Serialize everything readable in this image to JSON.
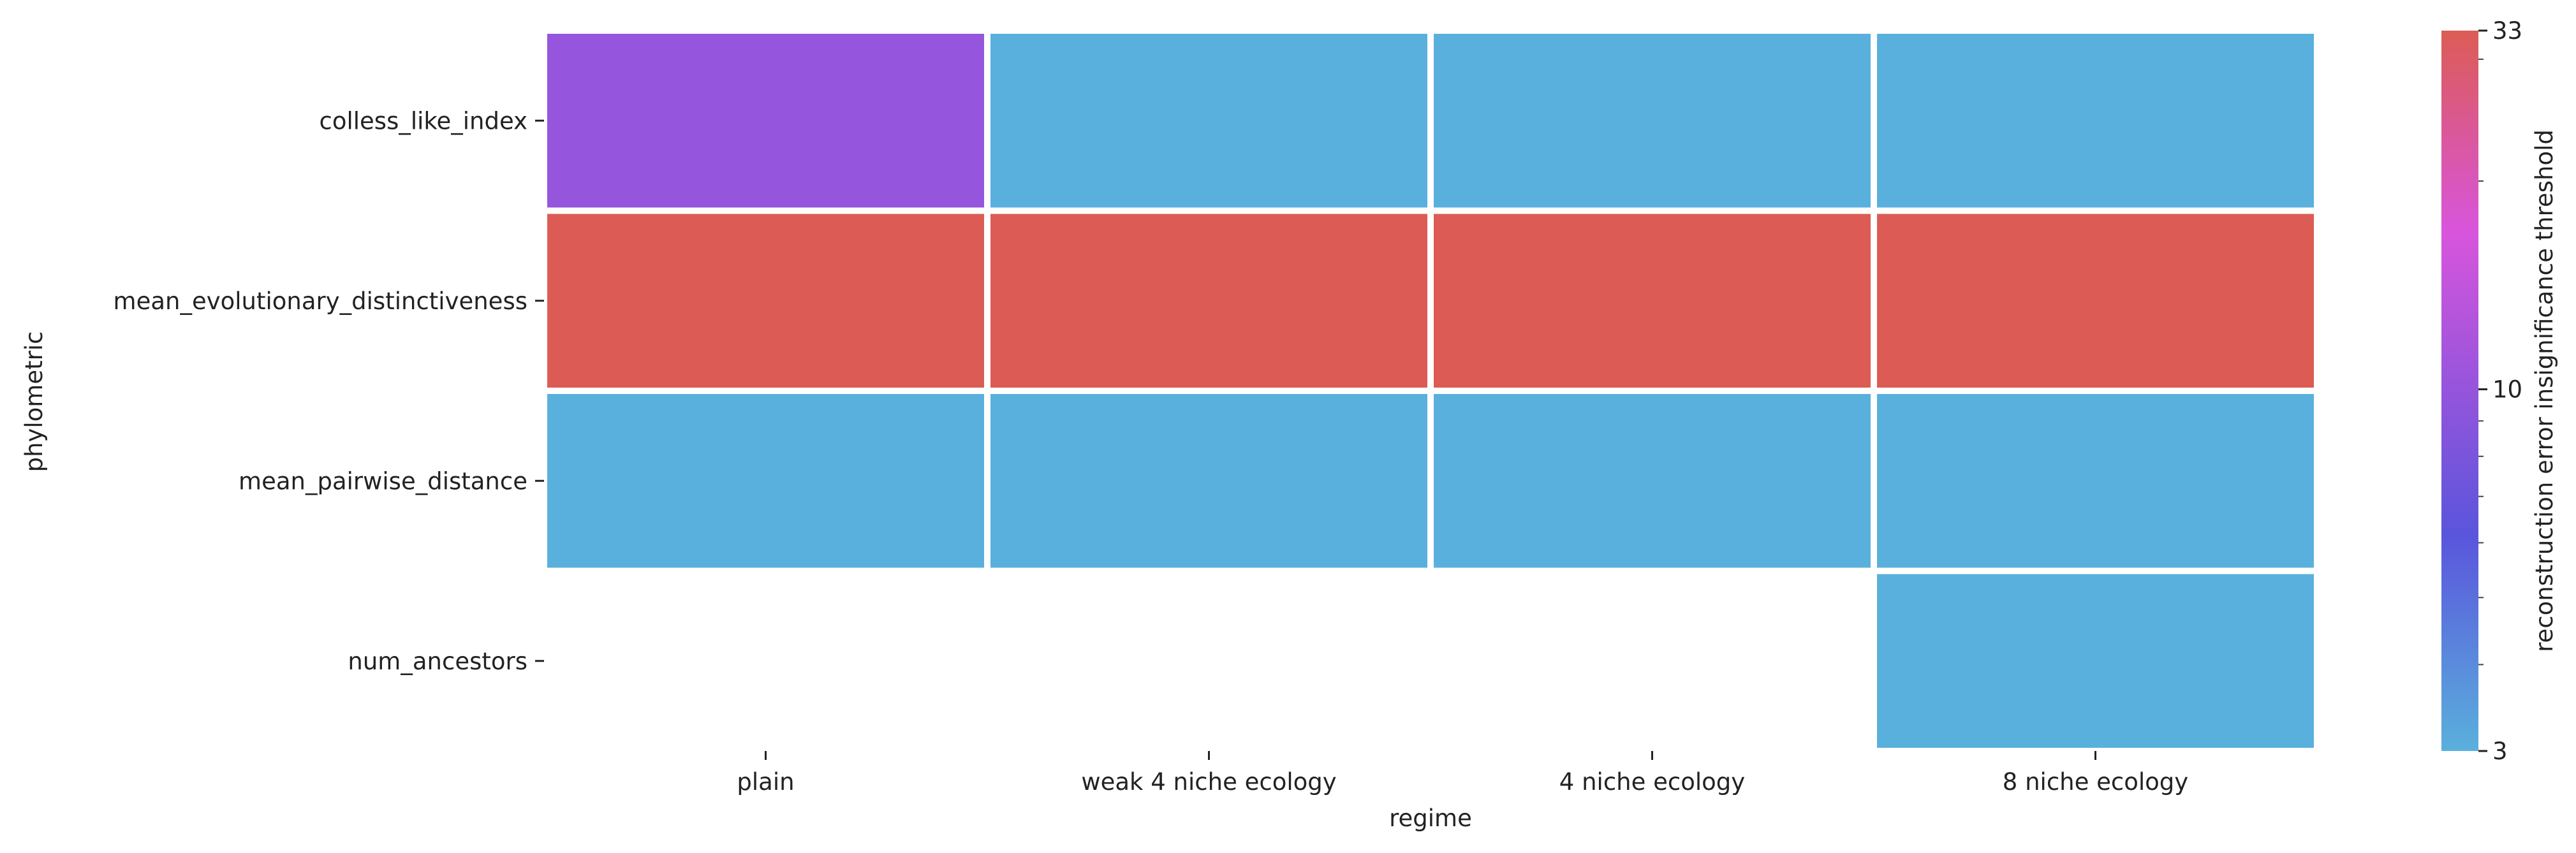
{
  "chart_data": {
    "type": "heatmap",
    "title": "",
    "xlabel": "regime",
    "ylabel": "phylometric",
    "x_categories": [
      "plain",
      "weak 4 niche ecology",
      "4 niche ecology",
      "8 niche ecology"
    ],
    "y_categories": [
      "colless_like_index",
      "mean_evolutionary_distinctiveness",
      "mean_pairwise_distance",
      "num_ancestors"
    ],
    "values": [
      [
        10,
        3,
        3,
        3
      ],
      [
        33,
        33,
        33,
        33
      ],
      [
        3,
        3,
        3,
        3
      ],
      [
        null,
        null,
        null,
        3
      ]
    ],
    "colorbar": {
      "label": "reconstruction error insignificance threshold",
      "scale": "log",
      "range": [
        3,
        33
      ],
      "tick_labels": [
        "3",
        "10",
        "33"
      ],
      "tick_values": [
        3,
        10,
        33
      ],
      "colors": {
        "low": "#5ab0dc",
        "mid_low": "#5a55dc",
        "mid": "#9a55dc",
        "mid_high": "#d855dc",
        "high": "#dc5c55"
      }
    },
    "grid": false,
    "cell_border_color": "#ffffff"
  }
}
